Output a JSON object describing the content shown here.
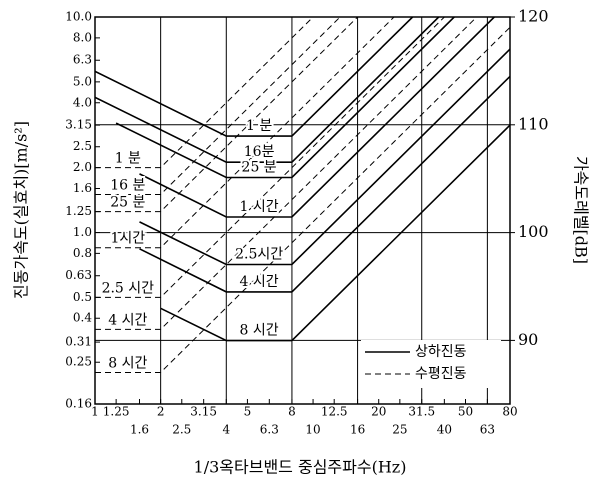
{
  "chart_data": {
    "type": "line",
    "y_label": "진동가속도(실효치)[m/s²]",
    "y2_label": "가속도레벨[dB]",
    "x_label": "1/3옥타브밴드 중심주파수(Hz)",
    "log_x": true,
    "log_y": true,
    "xlim": [
      1,
      80
    ],
    "xticks": [
      1,
      1.25,
      1.6,
      2,
      2.5,
      3.15,
      4,
      5,
      6.3,
      8,
      10,
      12.5,
      16,
      20,
      25,
      31.5,
      40,
      50,
      63,
      80
    ],
    "xgrid": [
      2,
      4,
      8,
      16,
      31.5,
      63
    ],
    "ylim": [
      0.16,
      10
    ],
    "yticks": [
      0.16,
      0.25,
      0.31,
      0.4,
      0.5,
      0.63,
      0.8,
      {
        "value": 1,
        "label": "1.0"
      },
      1.25,
      1.6,
      {
        "value": 2,
        "label": "2.0"
      },
      2.5,
      3.15,
      {
        "value": 4,
        "label": "4.0"
      },
      {
        "value": 5,
        "label": "5.0"
      },
      6.3,
      {
        "value": 8,
        "label": "8.0"
      },
      {
        "value": 10,
        "label": "10.0"
      }
    ],
    "y2lim": [
      84.1,
      120
    ],
    "y2ticks": [
      90,
      100,
      110,
      120
    ],
    "grid": true,
    "legend": "lower right",
    "series": [
      {
        "name": "상하진동",
        "color": "#000000",
        "style": "solid",
        "curves": [
          {
            "label": "1 분",
            "x": [
              1,
              4,
              8,
              28.6
            ],
            "values": [
              5.6,
              2.8,
              2.8,
              10
            ]
          },
          {
            "label": "16분",
            "x": [
              1,
              4,
              8,
              37.7
            ],
            "values": [
              4.24,
              2.12,
              2.12,
              10
            ]
          },
          {
            "label": "25 분",
            "x": [
              1.25,
              4,
              8,
              44.4
            ],
            "values": [
              3.22,
              1.8,
              1.8,
              10
            ]
          },
          {
            "label": "1 시간",
            "x": [
              1.6,
              4,
              8,
              67.8
            ],
            "values": [
              1.87,
              1.18,
              1.18,
              10
            ]
          },
          {
            "label": "2.5시간",
            "x": [
              1.6,
              4,
              8,
              80
            ],
            "values": [
              1.12,
              0.71,
              0.71,
              7.1
            ]
          },
          {
            "label": "4 시간",
            "x": [
              1.6,
              4,
              8,
              80
            ],
            "values": [
              0.84,
              0.53,
              0.53,
              5.3
            ]
          },
          {
            "label": "8 시간",
            "x": [
              2,
              4,
              8,
              80
            ],
            "values": [
              0.445,
              0.315,
              0.315,
              3.15
            ]
          }
        ]
      },
      {
        "name": "수평진동",
        "color": "#000000",
        "style": "dashed",
        "curves": [
          {
            "label": "1 분",
            "x": [
              1,
              2,
              10
            ],
            "values": [
              2,
              2,
              10
            ]
          },
          {
            "label": "16 분",
            "x": [
              1,
              2,
              13.3
            ],
            "values": [
              1.5,
              1.5,
              10
            ]
          },
          {
            "label": "25 분",
            "x": [
              1,
              2,
              16
            ],
            "values": [
              1.25,
              1.25,
              10
            ]
          },
          {
            "label": "1시간",
            "x": [
              1,
              2,
              23.5
            ],
            "values": [
              0.85,
              0.85,
              10
            ]
          },
          {
            "label": "2.5 시간",
            "x": [
              1,
              2,
              40
            ],
            "values": [
              0.5,
              0.5,
              10
            ]
          },
          {
            "label": "4 시간",
            "x": [
              1,
              2,
              56.3
            ],
            "values": [
              0.355,
              0.355,
              10
            ]
          },
          {
            "label": "8 시간",
            "x": [
              1,
              2,
              80
            ],
            "values": [
              0.224,
              0.224,
              8.96
            ]
          }
        ]
      }
    ]
  }
}
